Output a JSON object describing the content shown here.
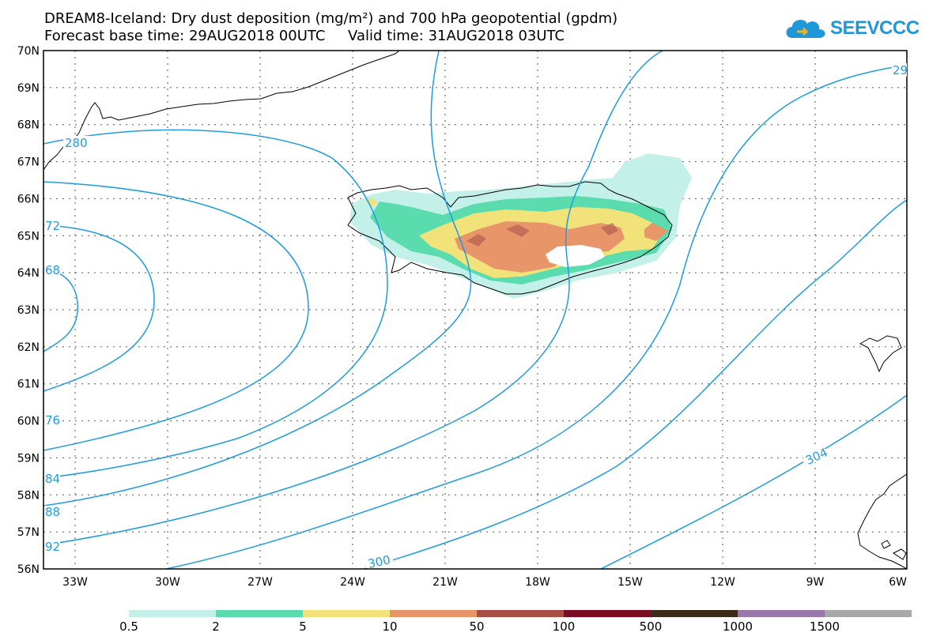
{
  "title": {
    "line1": "DREAM8-Iceland: Dry dust deposition (mg/m²) and 700 hPa geopotential (gpdm)",
    "line2_left": "Forecast base time: 29AUG2018 00UTC",
    "line2_right": "Valid time: 31AUG2018 03UTC"
  },
  "logo": {
    "text": "SEEVCCC",
    "icon": "cloud-icon",
    "color": "#1f97d8"
  },
  "map": {
    "lat_labels": [
      "70N",
      "69N",
      "68N",
      "67N",
      "66N",
      "65N",
      "64N",
      "63N",
      "62N",
      "61N",
      "60N",
      "59N",
      "58N",
      "57N",
      "56N"
    ],
    "lon_labels": [
      "33W",
      "30W",
      "27W",
      "24W",
      "21W",
      "18W",
      "15W",
      "12W",
      "9W",
      "6W"
    ],
    "contour_color": "#1f9be0",
    "contour_labels": [
      "280",
      "72",
      "68",
      "76",
      "84",
      "88",
      "92",
      "300",
      "304",
      "29"
    ]
  },
  "legend": {
    "colors": [
      "#c3f0e8",
      "#5bdcae",
      "#f2e27a",
      "#e8956a",
      "#a85048",
      "#7a0d24",
      "#3a2a18",
      "#9878a8",
      "#a8a8a8"
    ],
    "labels": [
      "0.5",
      "2",
      "5",
      "10",
      "50",
      "100",
      "500",
      "1000",
      "1500"
    ]
  }
}
